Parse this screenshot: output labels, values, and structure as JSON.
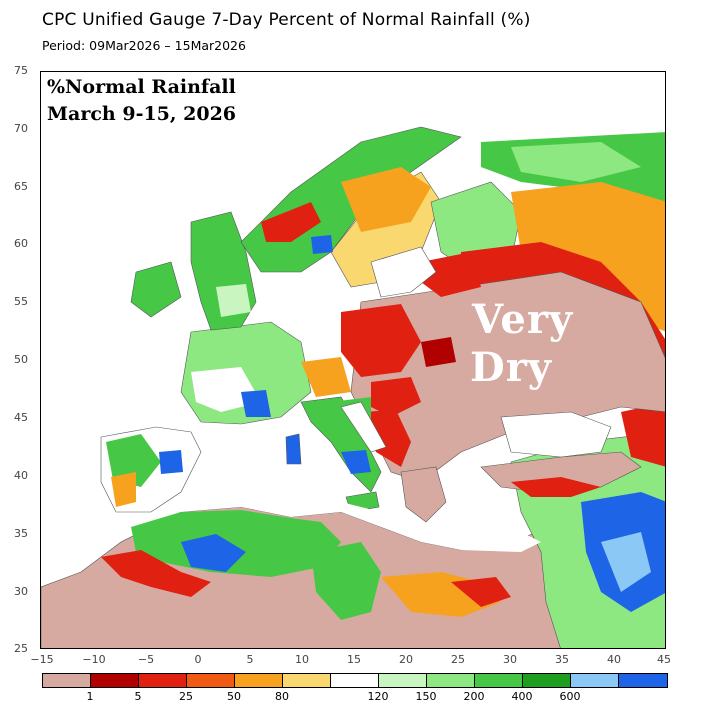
{
  "header": {
    "title": "CPC Unified Gauge 7-Day Percent of Normal Rainfall (%)",
    "period": "Period: 09Mar2026 – 15Mar2026"
  },
  "annotation": {
    "line1": "%Normal Rainfall",
    "line2": "March 9-15, 2026",
    "dry_line1": "Very",
    "dry_line2": "Dry"
  },
  "axes": {
    "lat_ticks": [
      "75",
      "70",
      "65",
      "60",
      "55",
      "50",
      "45",
      "40",
      "35",
      "30",
      "25"
    ],
    "lon_ticks": [
      "−15",
      "−10",
      "−5",
      "0",
      "5",
      "10",
      "15",
      "20",
      "25",
      "30",
      "35",
      "40",
      "45"
    ]
  },
  "legend": {
    "colors": [
      "#d6aaa0",
      "#b00000",
      "#e02010",
      "#f05a14",
      "#f7a21e",
      "#fad870",
      "#ffffff",
      "#c8f5c0",
      "#8ee882",
      "#46c846",
      "#1e9e1e",
      "#8cc8f5",
      "#1e64e6"
    ],
    "labels": [
      "1",
      "5",
      "25",
      "50",
      "80",
      "120",
      "150",
      "200",
      "400",
      "600"
    ]
  }
}
